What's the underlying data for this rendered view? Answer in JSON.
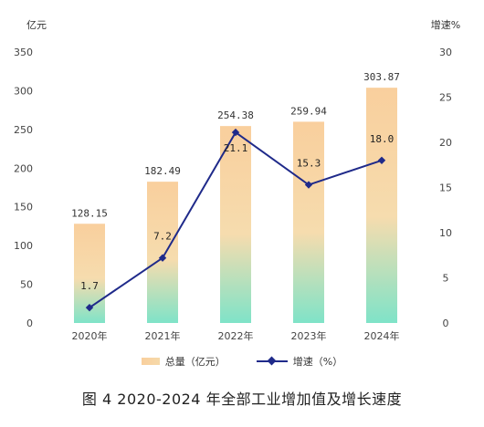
{
  "chart_data": {
    "type": "bar",
    "categories": [
      "2020年",
      "2021年",
      "2022年",
      "2023年",
      "2024年"
    ],
    "series": [
      {
        "name": "总量（亿元）",
        "type": "bar",
        "axis": "left",
        "values": [
          128.15,
          182.49,
          254.38,
          259.94,
          303.87
        ],
        "labels": [
          "128.15",
          "182.49",
          "254.38",
          "259.94",
          "303.87"
        ]
      },
      {
        "name": "增速（%）",
        "type": "line",
        "axis": "right",
        "values": [
          1.7,
          7.2,
          21.1,
          15.3,
          18.0
        ],
        "labels": [
          "1.7",
          "7.2",
          "21.1",
          "15.3",
          "18.0"
        ]
      }
    ],
    "left_axis": {
      "unit": "亿元",
      "ylim": [
        0,
        350
      ],
      "ticks": [
        "0",
        "50",
        "100",
        "150",
        "200",
        "250",
        "300",
        "350"
      ]
    },
    "right_axis": {
      "unit": "增速%",
      "ylim": [
        0,
        30
      ],
      "ticks": [
        "0",
        "5",
        "10",
        "15",
        "20",
        "25",
        "30"
      ]
    },
    "grid": false,
    "legend_position": "bottom",
    "colors": {
      "bar_top": "#f9cf9d",
      "bar_bottom": "#7fe3c8",
      "line": "#1f2a8a"
    },
    "caption": "图 4   2020-2024 年全部工业增加值及增长速度"
  }
}
